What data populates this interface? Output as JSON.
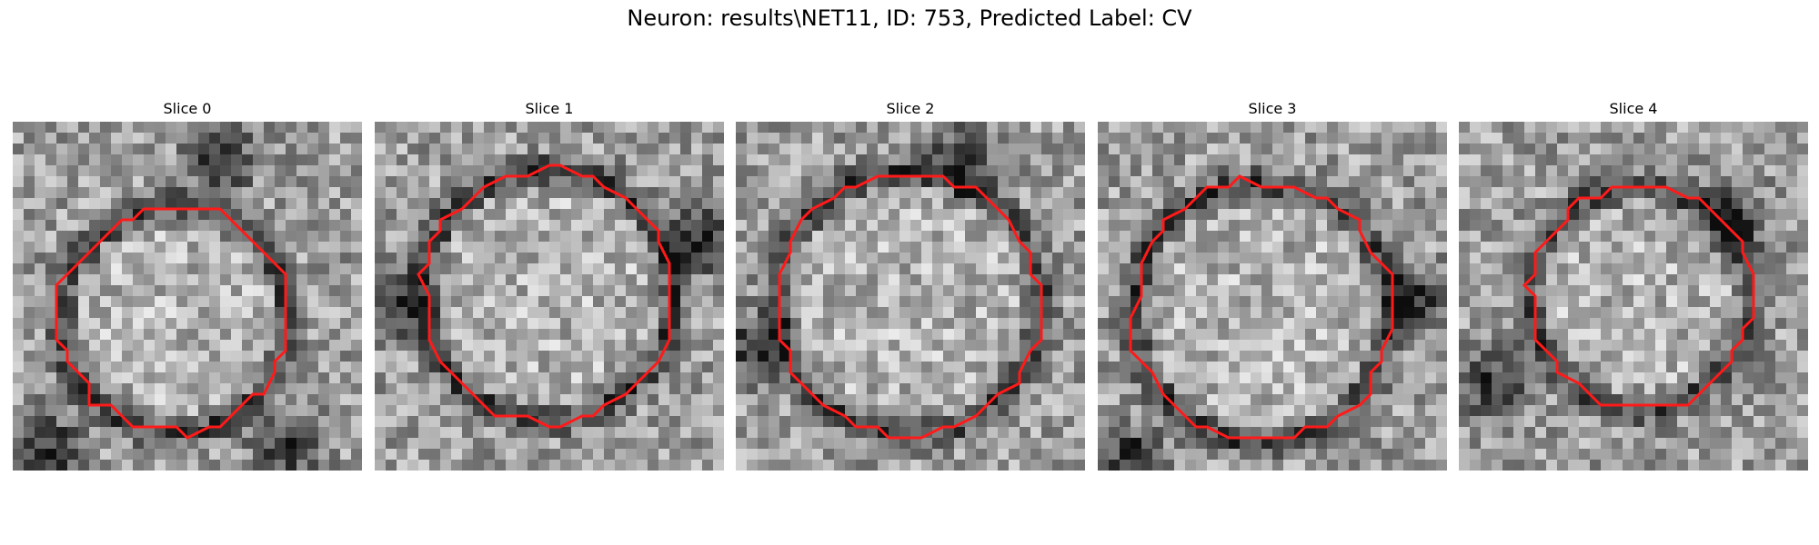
{
  "figure": {
    "title": "Neuron: results\\NET11, ID: 753, Predicted Label: CV"
  },
  "colors": {
    "contour": "#ff1a1a",
    "background": "#ffffff"
  },
  "panels": [
    {
      "title": "Slice 0"
    },
    {
      "title": "Slice 1"
    },
    {
      "title": "Slice 2"
    },
    {
      "title": "Slice 3"
    },
    {
      "title": "Slice 4"
    }
  ]
}
